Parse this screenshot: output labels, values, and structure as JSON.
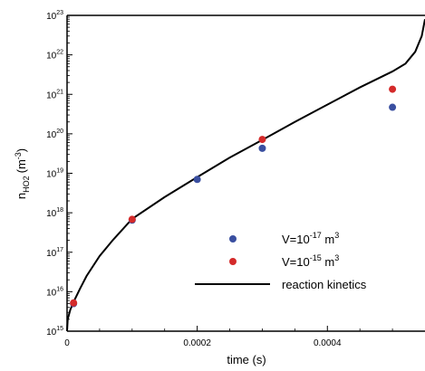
{
  "chart_data": {
    "type": "scatter",
    "xlabel": "time (s)",
    "ylabel_main": "n",
    "ylabel_sub": "HO2",
    "ylabel_unit_open": "(m",
    "ylabel_unit_exp": "-3",
    "ylabel_unit_close": ")",
    "xlim": [
      0,
      0.00055
    ],
    "ylim_log10": [
      15,
      23
    ],
    "y_scale": "log",
    "x_ticks": [
      0,
      0.0002,
      0.0004
    ],
    "x_tick_labels": [
      "0",
      "0.0002",
      "0.0004"
    ],
    "y_ticks_exp": [
      15,
      16,
      17,
      18,
      19,
      20,
      21,
      22,
      23
    ],
    "y_tick_base": "10",
    "grid": false,
    "legend_position": "bottom-right",
    "series": [
      {
        "label_pre": "V=10",
        "label_exp": "-17",
        "label_post": " m",
        "label_unit_exp": "3",
        "kind": "scatter",
        "color": "#3a4fa0",
        "points": [
          {
            "x": 1e-05,
            "y": 5000000000000000.0
          },
          {
            "x": 0.0001,
            "y": 6.5e+17
          },
          {
            "x": 0.0002,
            "y": 7e+18
          },
          {
            "x": 0.0003,
            "y": 4.3e+19
          },
          {
            "x": 0.0005,
            "y": 4.7e+20
          }
        ]
      },
      {
        "label_pre": "V=10",
        "label_exp": "-15",
        "label_post": " m",
        "label_unit_exp": "3",
        "kind": "scatter",
        "color": "#d42a2a",
        "points": [
          {
            "x": 1e-05,
            "y": 5200000000000000.0
          },
          {
            "x": 0.0001,
            "y": 6.8e+17
          },
          {
            "x": 0.0003,
            "y": 7.2e+19
          },
          {
            "x": 0.0005,
            "y": 1.35e+21
          }
        ]
      },
      {
        "label": "reaction kinetics",
        "kind": "line",
        "color": "#000000",
        "points": [
          {
            "x": 0.0,
            "y": 1000000000000000.0
          },
          {
            "x": 1e-06,
            "y": 2000000000000000.0
          },
          {
            "x": 5e-06,
            "y": 3500000000000000.0
          },
          {
            "x": 1e-05,
            "y": 5500000000000000.0
          },
          {
            "x": 2e-05,
            "y": 1.2e+16
          },
          {
            "x": 3e-05,
            "y": 2.5e+16
          },
          {
            "x": 5e-05,
            "y": 8e+16
          },
          {
            "x": 7e-05,
            "y": 2e+17
          },
          {
            "x": 0.0001,
            "y": 7e+17
          },
          {
            "x": 0.00015,
            "y": 2.5e+18
          },
          {
            "x": 0.0002,
            "y": 8e+18
          },
          {
            "x": 0.00025,
            "y": 2.5e+19
          },
          {
            "x": 0.0003,
            "y": 7e+19
          },
          {
            "x": 0.00035,
            "y": 2e+20
          },
          {
            "x": 0.0004,
            "y": 5.5e+20
          },
          {
            "x": 0.00045,
            "y": 1.5e+21
          },
          {
            "x": 0.0005,
            "y": 3.8e+21
          },
          {
            "x": 0.00052,
            "y": 6e+21
          },
          {
            "x": 0.000535,
            "y": 1.2e+22
          },
          {
            "x": 0.000545,
            "y": 3e+22
          },
          {
            "x": 0.00055,
            "y": 8e+22
          }
        ]
      }
    ]
  }
}
